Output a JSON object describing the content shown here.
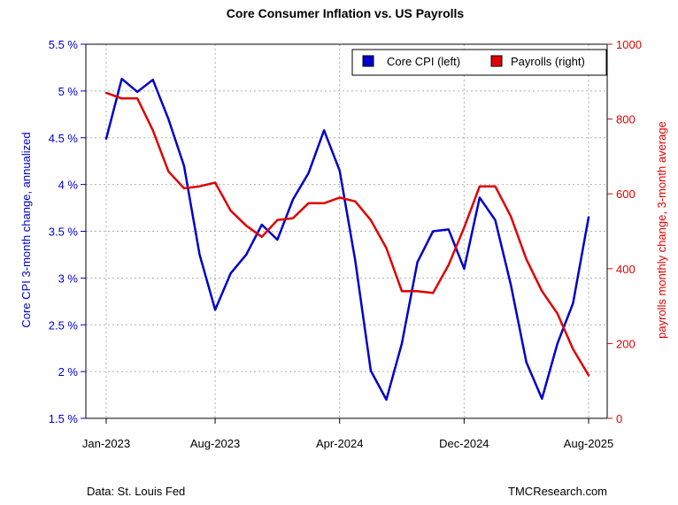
{
  "chart_data": {
    "type": "line",
    "title": "Core Consumer Inflation vs. US Payrolls",
    "ylabel_left": "Core CPI 3-month change, annualized",
    "ylabel_right": "payrolls monthly change, 3-month average",
    "ylim_left": [
      1.5,
      5.5
    ],
    "ylim_right": [
      0,
      1000
    ],
    "yticks_left": [
      "1.5 %",
      "2 %",
      "2.5 %",
      "3 %",
      "3.5 %",
      "4 %",
      "4.5 %",
      "5 %",
      "5.5 %"
    ],
    "yticks_left_values": [
      1.5,
      2,
      2.5,
      3,
      3.5,
      4,
      4.5,
      5,
      5.5
    ],
    "yticks_right": [
      "0",
      "200",
      "400",
      "600",
      "800",
      "1000"
    ],
    "yticks_right_values": [
      0,
      200,
      400,
      600,
      800,
      1000
    ],
    "x": [
      "2023-01",
      "2023-02",
      "2023-03",
      "2023-04",
      "2023-05",
      "2023-06",
      "2023-07",
      "2023-08",
      "2023-09",
      "2023-10",
      "2023-11",
      "2023-12",
      "2024-01",
      "2024-02",
      "2024-03",
      "2024-04",
      "2024-05",
      "2024-06",
      "2024-07",
      "2024-08",
      "2024-09",
      "2024-10",
      "2024-11",
      "2024-12",
      "2025-01",
      "2025-02",
      "2025-03",
      "2025-04",
      "2025-05",
      "2025-06",
      "2025-07",
      "2025-08"
    ],
    "xticks": [
      "Jan-2023",
      "Aug-2023",
      "Apr-2024",
      "Dec-2024",
      "Aug-2025"
    ],
    "xticks_index": [
      0,
      7,
      15,
      23,
      31
    ],
    "series": [
      {
        "name": "Core CPI (left)",
        "axis": "left",
        "color": "#0000cc",
        "values": [
          4.49,
          5.13,
          4.99,
          5.12,
          4.7,
          4.2,
          3.25,
          2.66,
          3.05,
          3.25,
          3.57,
          3.41,
          3.84,
          4.12,
          4.58,
          4.15,
          3.19,
          2.01,
          1.7,
          2.3,
          3.17,
          3.5,
          3.52,
          3.1,
          3.86,
          3.62,
          2.93,
          2.1,
          1.71,
          2.3,
          2.73,
          3.65
        ]
      },
      {
        "name": "Payrolls (right)",
        "axis": "right",
        "color": "#e00000",
        "values": [
          870,
          855,
          855,
          770,
          660,
          615,
          620,
          630,
          555,
          515,
          485,
          530,
          535,
          575,
          575,
          590,
          580,
          530,
          455,
          340,
          340,
          335,
          410,
          510,
          620,
          620,
          540,
          425,
          340,
          280,
          185,
          115
        ]
      }
    ],
    "legend": {
      "position": "top-right",
      "entries": [
        "Core CPI (left)",
        "Payrolls (right)"
      ]
    },
    "grid": true
  },
  "footer": {
    "source": "Data: St. Louis Fed",
    "brand": "TMCResearch.com"
  }
}
